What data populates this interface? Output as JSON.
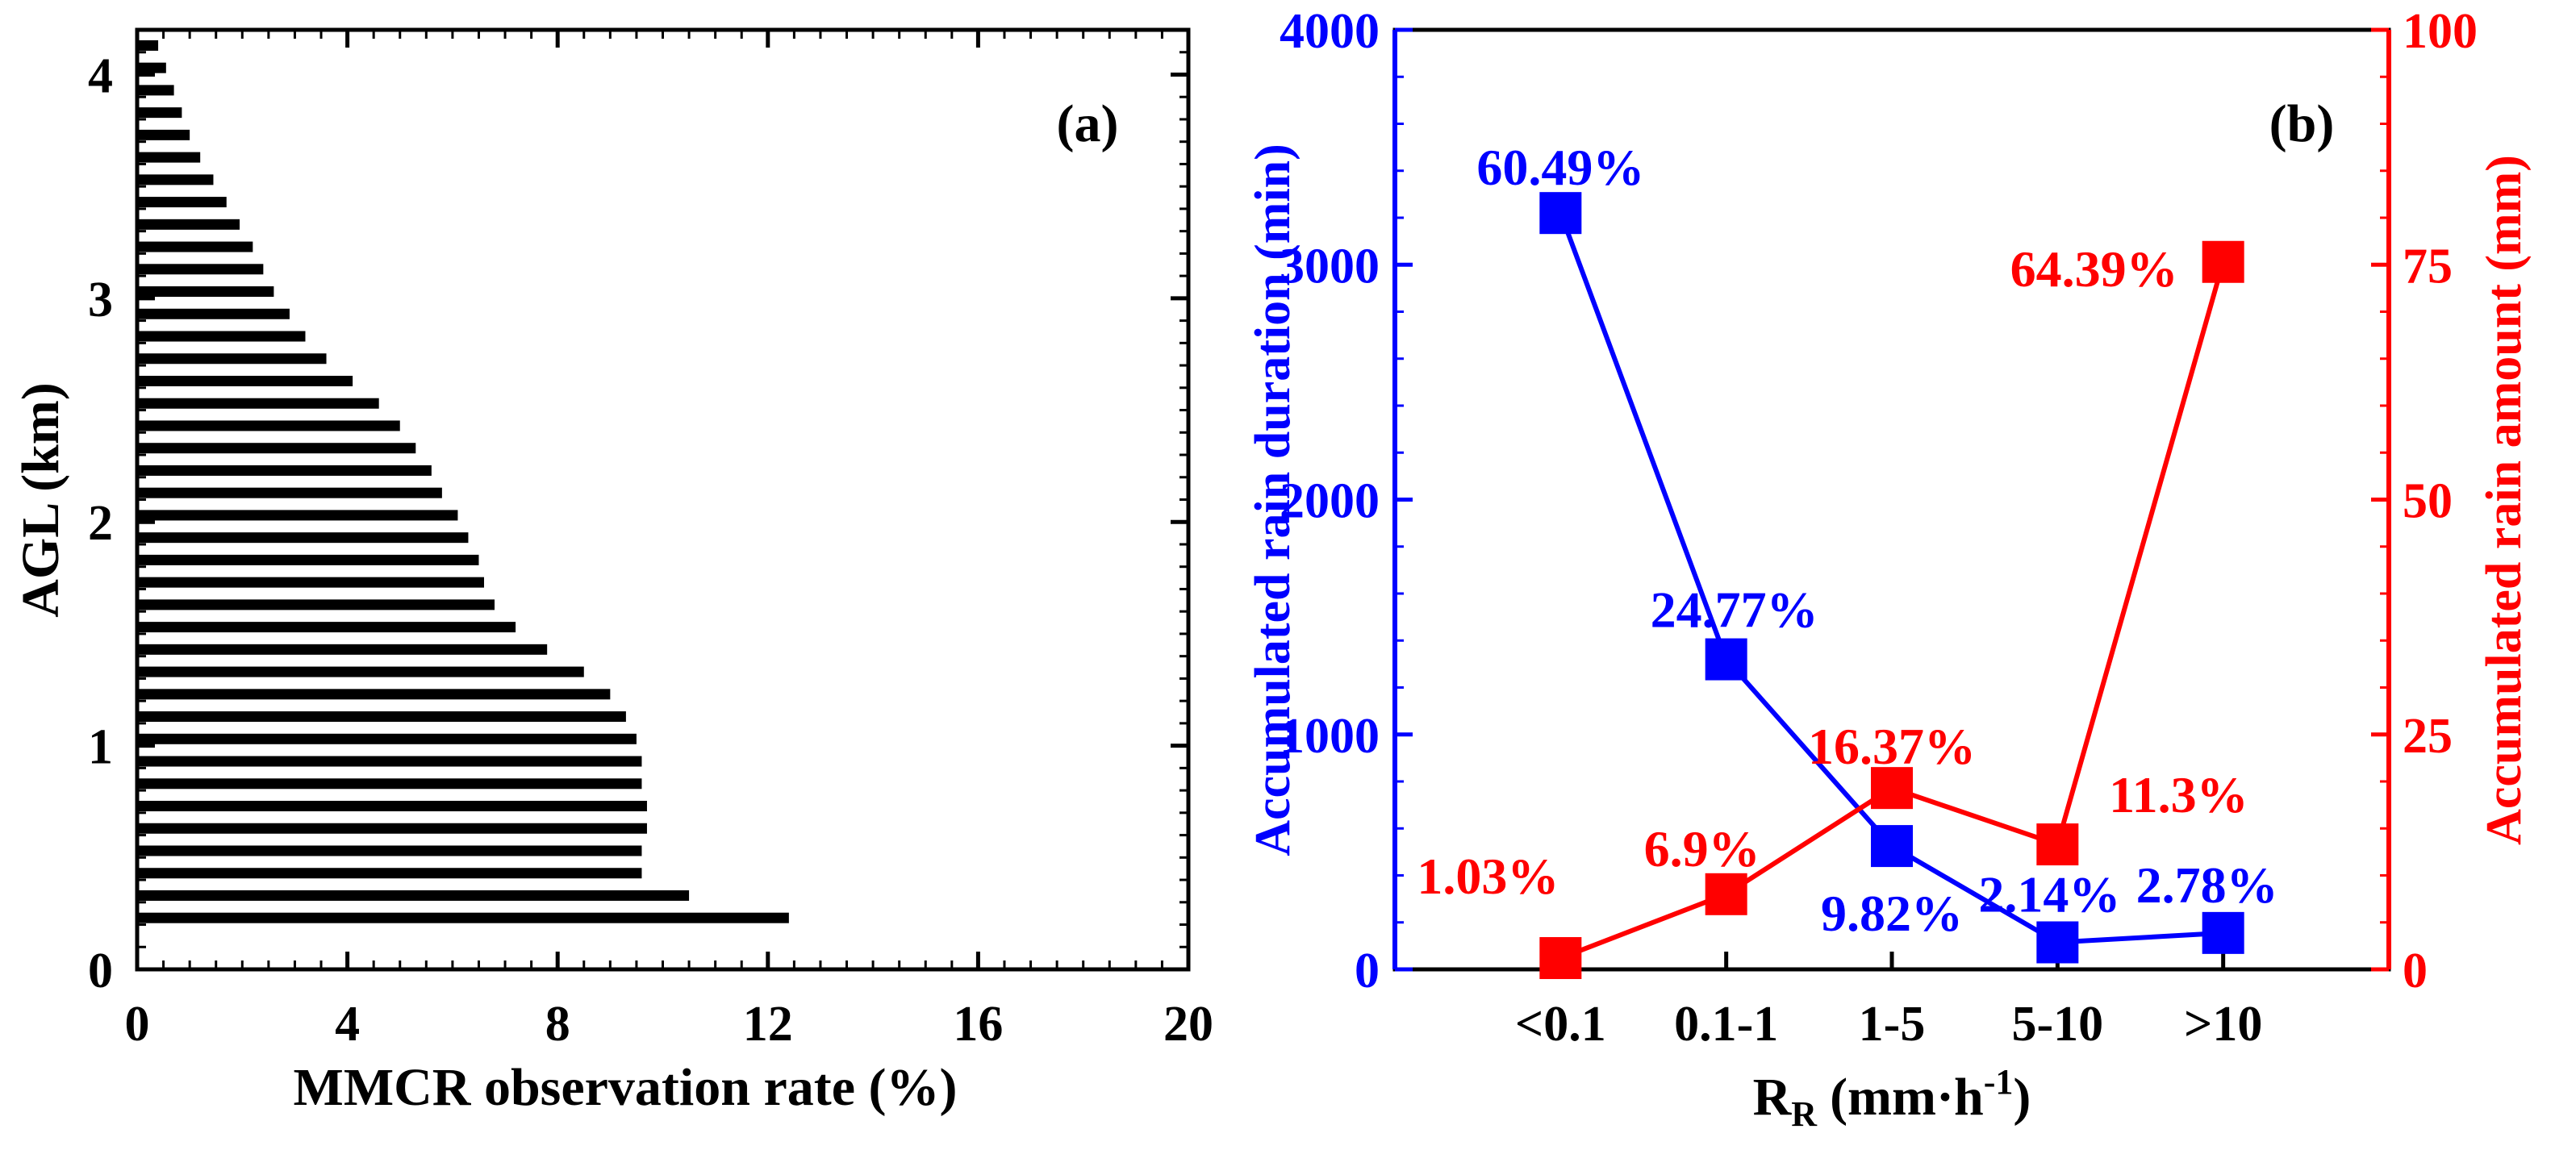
{
  "chart_data": [
    {
      "type": "bar",
      "orientation": "horizontal",
      "panel_label": "(a)",
      "xlabel": "MMCR observation rate (%)",
      "ylabel": "AGL (km)",
      "xlim": [
        0,
        20
      ],
      "ylim": [
        0,
        4.2
      ],
      "xticks": [
        "0",
        "4",
        "8",
        "12",
        "16",
        "20"
      ],
      "yticks": [
        "0",
        "1",
        "2",
        "3",
        "4"
      ],
      "heights_km": [
        0.23,
        0.33,
        0.43,
        0.53,
        0.63,
        0.73,
        0.83,
        0.93,
        1.03,
        1.13,
        1.23,
        1.33,
        1.43,
        1.53,
        1.63,
        1.73,
        1.83,
        1.93,
        2.03,
        2.13,
        2.23,
        2.33,
        2.43,
        2.53,
        2.63,
        2.73,
        2.83,
        2.93,
        3.03,
        3.13,
        3.23,
        3.33,
        3.43,
        3.53,
        3.63,
        3.73,
        3.83,
        3.93,
        4.03,
        4.13
      ],
      "values": [
        12.4,
        10.5,
        9.6,
        9.6,
        9.7,
        9.7,
        9.6,
        9.6,
        9.5,
        9.3,
        9.0,
        8.5,
        7.8,
        7.2,
        6.8,
        6.6,
        6.5,
        6.3,
        6.1,
        5.8,
        5.6,
        5.3,
        5.0,
        4.6,
        4.1,
        3.6,
        3.2,
        2.9,
        2.6,
        2.4,
        2.2,
        1.95,
        1.7,
        1.45,
        1.2,
        1.0,
        0.85,
        0.7,
        0.55,
        0.4
      ]
    },
    {
      "type": "line",
      "panel_label": "(b)",
      "categories": [
        "<0.1",
        "0.1-1",
        "1-5",
        "5-10",
        ">10"
      ],
      "xlabel_main": "R",
      "xlabel_sub": "R",
      "xlabel_units": "(mm·h",
      "xlabel_sup": "-1",
      "xlabel_close": ")",
      "ylabel_left": "Accumulated rain duration (min)",
      "ylabel_right": "Accumulated rain amount (mm)",
      "ylim_left": [
        0,
        4000
      ],
      "ylim_right": [
        0,
        100
      ],
      "yticks_left": [
        "0",
        "1000",
        "2000",
        "3000",
        "4000"
      ],
      "yticks_right": [
        "0",
        "25",
        "50",
        "75",
        "100"
      ],
      "series": [
        {
          "name": "Accumulated rain duration",
          "axis": "left",
          "color": "#0000ff",
          "values": [
            3220,
            1320,
            525,
            115,
            155
          ],
          "labels": [
            "60.49%",
            "24.77%",
            "9.82%",
            "2.14%",
            "2.78%"
          ]
        },
        {
          "name": "Accumulated rain amount",
          "axis": "right",
          "color": "#ff0000",
          "values": [
            1.2,
            8.0,
            19.3,
            13.3,
            75.3
          ],
          "labels": [
            "1.03%",
            "6.9%",
            "16.37%",
            "11.3%",
            "64.39%"
          ]
        }
      ]
    }
  ]
}
